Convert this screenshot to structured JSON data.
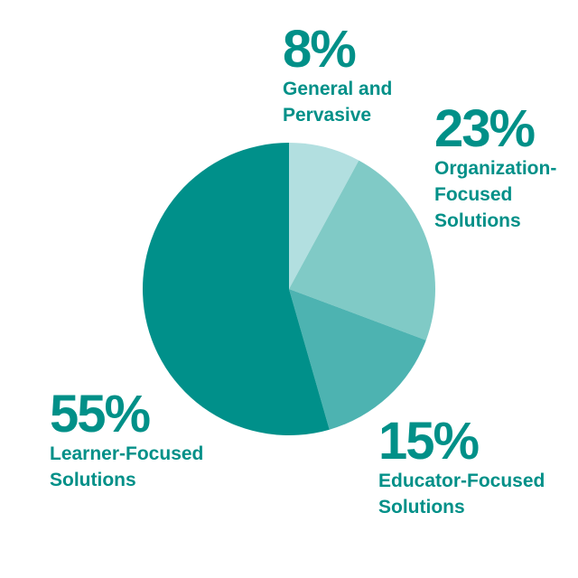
{
  "chart_data": {
    "type": "pie",
    "slices": [
      {
        "label": "General and Pervasive",
        "line1": "General and",
        "line2": "Pervasive",
        "percent_label": "8%",
        "value": 8,
        "color": "#b2dfe0"
      },
      {
        "label": "Organization-Focused Solutions",
        "line1": "Organization-",
        "line2": "Focused",
        "line3": "Solutions",
        "percent_label": "23%",
        "value": 23,
        "color": "#80cac6"
      },
      {
        "label": "Educator-Focused Solutions",
        "line1": "Educator-Focused",
        "line2": "Solutions",
        "percent_label": "15%",
        "value": 15,
        "color": "#4db3b1"
      },
      {
        "label": "Learner-Focused Solutions",
        "line1": "Learner-Focused",
        "line2": "Solutions",
        "percent_label": "55%",
        "value": 55,
        "color": "#00908a"
      }
    ],
    "start_angle_deg": 0,
    "direction": "clockwise",
    "text_color": "#009088"
  }
}
